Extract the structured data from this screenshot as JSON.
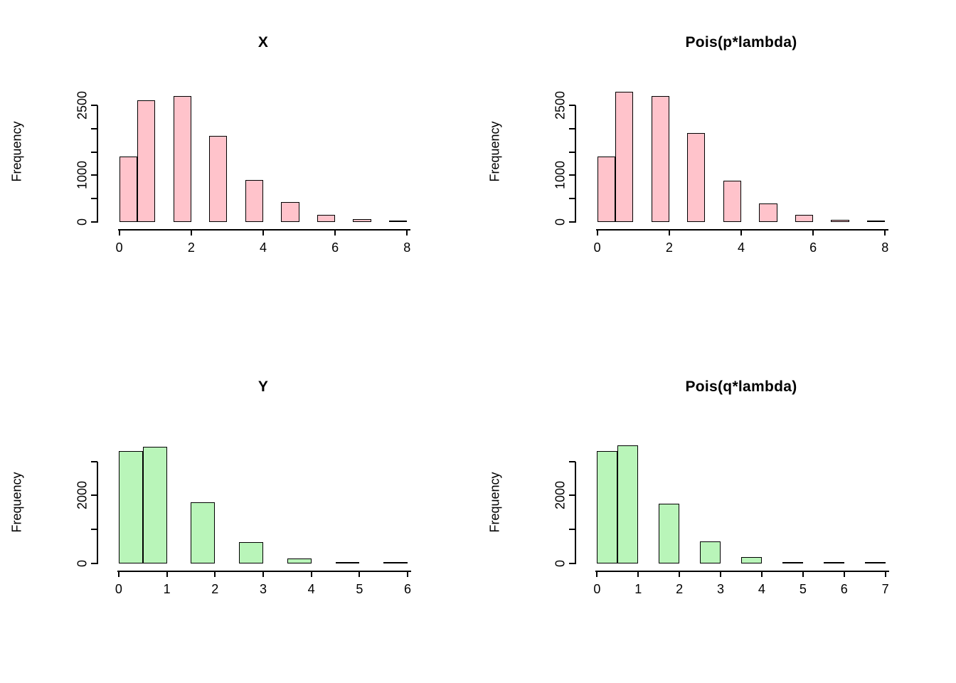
{
  "figure": {
    "background": "#ffffff"
  },
  "chart_data": [
    {
      "type": "bar",
      "title": "X",
      "xlabel": "",
      "ylabel": "Frequency",
      "bar_fill": "#ffc3cb",
      "bar_border": "#000000",
      "categories": [
        "0",
        "1",
        "2",
        "3",
        "4",
        "5",
        "6",
        "7",
        "8"
      ],
      "values": [
        1400,
        2600,
        2700,
        1850,
        900,
        420,
        160,
        55,
        15
      ],
      "bins": [
        {
          "from": 0,
          "to": 0.5,
          "count": 1400
        },
        {
          "from": 0.5,
          "to": 1,
          "count": 2600
        },
        {
          "from": 1.5,
          "to": 2,
          "count": 2700
        },
        {
          "from": 2.5,
          "to": 3,
          "count": 1850
        },
        {
          "from": 3.5,
          "to": 4,
          "count": 900
        },
        {
          "from": 4.5,
          "to": 5,
          "count": 420
        },
        {
          "from": 5.5,
          "to": 6,
          "count": 160
        },
        {
          "from": 6.5,
          "to": 7,
          "count": 55
        },
        {
          "from": 7.5,
          "to": 8,
          "count": 15
        }
      ],
      "xlim": [
        -0.35,
        8.35
      ],
      "ylim": [
        0,
        3000
      ],
      "xticks": [
        0,
        2,
        4,
        6,
        8
      ],
      "xtick_labels": [
        "0",
        "2",
        "4",
        "6",
        "8"
      ],
      "yticks": [
        0,
        500,
        1000,
        1500,
        2000,
        2500
      ],
      "ytick_labels": [
        "0",
        "",
        "1000",
        "",
        "",
        "2500"
      ],
      "yaxis_line_max": 2500,
      "grid": false,
      "legend": false
    },
    {
      "type": "bar",
      "title": "Pois(p*lambda)",
      "xlabel": "",
      "ylabel": "Frequency",
      "bar_fill": "#ffc3cb",
      "bar_border": "#000000",
      "categories": [
        "0",
        "1",
        "2",
        "3",
        "4",
        "5",
        "6",
        "7",
        "8"
      ],
      "values": [
        1400,
        2780,
        2700,
        1900,
        880,
        400,
        150,
        45,
        10
      ],
      "bins": [
        {
          "from": 0,
          "to": 0.5,
          "count": 1400
        },
        {
          "from": 0.5,
          "to": 1,
          "count": 2780
        },
        {
          "from": 1.5,
          "to": 2,
          "count": 2700
        },
        {
          "from": 2.5,
          "to": 3,
          "count": 1900
        },
        {
          "from": 3.5,
          "to": 4,
          "count": 880
        },
        {
          "from": 4.5,
          "to": 5,
          "count": 400
        },
        {
          "from": 5.5,
          "to": 6,
          "count": 150
        },
        {
          "from": 6.5,
          "to": 7,
          "count": 45
        },
        {
          "from": 7.5,
          "to": 8,
          "count": 10
        }
      ],
      "xlim": [
        -0.35,
        8.35
      ],
      "ylim": [
        0,
        3000
      ],
      "xticks": [
        0,
        2,
        4,
        6,
        8
      ],
      "xtick_labels": [
        "0",
        "2",
        "4",
        "6",
        "8"
      ],
      "yticks": [
        0,
        500,
        1000,
        1500,
        2000,
        2500
      ],
      "ytick_labels": [
        "0",
        "",
        "1000",
        "",
        "",
        "2500"
      ],
      "yaxis_line_max": 2500,
      "grid": false,
      "legend": false
    },
    {
      "type": "bar",
      "title": "Y",
      "xlabel": "",
      "ylabel": "Frequency",
      "bar_fill": "#b9f5b9",
      "bar_border": "#000000",
      "categories": [
        "0",
        "1",
        "2",
        "3",
        "4",
        "5",
        "6"
      ],
      "values": [
        3300,
        3430,
        1800,
        620,
        150,
        35,
        5
      ],
      "bins": [
        {
          "from": 0,
          "to": 0.5,
          "count": 3300
        },
        {
          "from": 0.5,
          "to": 1,
          "count": 3430
        },
        {
          "from": 1.5,
          "to": 2,
          "count": 1800
        },
        {
          "from": 2.5,
          "to": 3,
          "count": 620
        },
        {
          "from": 3.5,
          "to": 4,
          "count": 150
        },
        {
          "from": 4.5,
          "to": 5,
          "count": 35
        },
        {
          "from": 5.5,
          "to": 6,
          "count": 5
        }
      ],
      "xlim": [
        -0.25,
        6.25
      ],
      "ylim": [
        0,
        3600
      ],
      "xticks": [
        0,
        1,
        2,
        3,
        4,
        5,
        6
      ],
      "xtick_labels": [
        "0",
        "1",
        "2",
        "3",
        "4",
        "5",
        "6"
      ],
      "yticks": [
        0,
        1000,
        2000,
        3000
      ],
      "ytick_labels": [
        "0",
        "",
        "2000",
        ""
      ],
      "yaxis_line_max": 3000,
      "grid": false,
      "legend": false
    },
    {
      "type": "bar",
      "title": "Pois(q*lambda)",
      "xlabel": "",
      "ylabel": "Frequency",
      "bar_fill": "#b9f5b9",
      "bar_border": "#000000",
      "categories": [
        "0",
        "1",
        "2",
        "3",
        "4",
        "5",
        "6",
        "7"
      ],
      "values": [
        3300,
        3480,
        1750,
        650,
        180,
        45,
        8,
        2
      ],
      "bins": [
        {
          "from": 0,
          "to": 0.5,
          "count": 3300
        },
        {
          "from": 0.5,
          "to": 1,
          "count": 3480
        },
        {
          "from": 1.5,
          "to": 2,
          "count": 1750
        },
        {
          "from": 2.5,
          "to": 3,
          "count": 650
        },
        {
          "from": 3.5,
          "to": 4,
          "count": 180
        },
        {
          "from": 4.5,
          "to": 5,
          "count": 45
        },
        {
          "from": 5.5,
          "to": 6,
          "count": 8
        },
        {
          "from": 6.5,
          "to": 7,
          "count": 2
        }
      ],
      "xlim": [
        -0.3,
        7.3
      ],
      "ylim": [
        0,
        3600
      ],
      "xticks": [
        0,
        1,
        2,
        3,
        4,
        5,
        6,
        7
      ],
      "xtick_labels": [
        "0",
        "1",
        "2",
        "3",
        "4",
        "5",
        "6",
        "7"
      ],
      "yticks": [
        0,
        1000,
        2000,
        3000
      ],
      "ytick_labels": [
        "0",
        "",
        "2000",
        ""
      ],
      "yaxis_line_max": 3000,
      "grid": false,
      "legend": false
    }
  ]
}
